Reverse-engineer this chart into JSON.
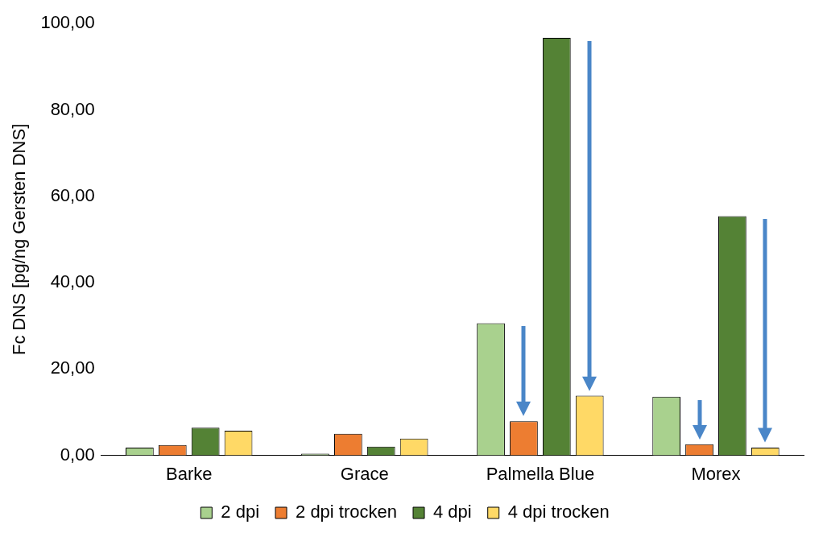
{
  "chart_data": {
    "type": "bar",
    "ylabel": "Fc DNS [pg/ng Gersten DNS]",
    "categories": [
      "Barke",
      "Grace",
      "Palmella Blue",
      "Morex"
    ],
    "series": [
      {
        "name": "2 dpi",
        "color": "#a9d18e",
        "values": [
          1.8,
          0.4,
          30.6,
          13.6
        ]
      },
      {
        "name": "2 dpi trocken",
        "color": "#ed7d31",
        "values": [
          2.4,
          5.0,
          7.9,
          2.6
        ]
      },
      {
        "name": "4 dpi",
        "color": "#548235",
        "values": [
          6.4,
          2.0,
          96.7,
          55.4
        ]
      },
      {
        "name": "4 dpi trocken",
        "color": "#ffd966",
        "values": [
          5.7,
          3.9,
          13.8,
          1.8
        ]
      }
    ],
    "ylim": [
      0,
      100
    ],
    "yticks": [
      {
        "value": 0,
        "label": "0,00"
      },
      {
        "value": 20,
        "label": "20,00"
      },
      {
        "value": 40,
        "label": "40,00"
      },
      {
        "value": 60,
        "label": "60,00"
      },
      {
        "value": 80,
        "label": "80,00"
      },
      {
        "value": 100,
        "label": "100,00"
      }
    ],
    "grid": false,
    "legend": "bottom"
  }
}
